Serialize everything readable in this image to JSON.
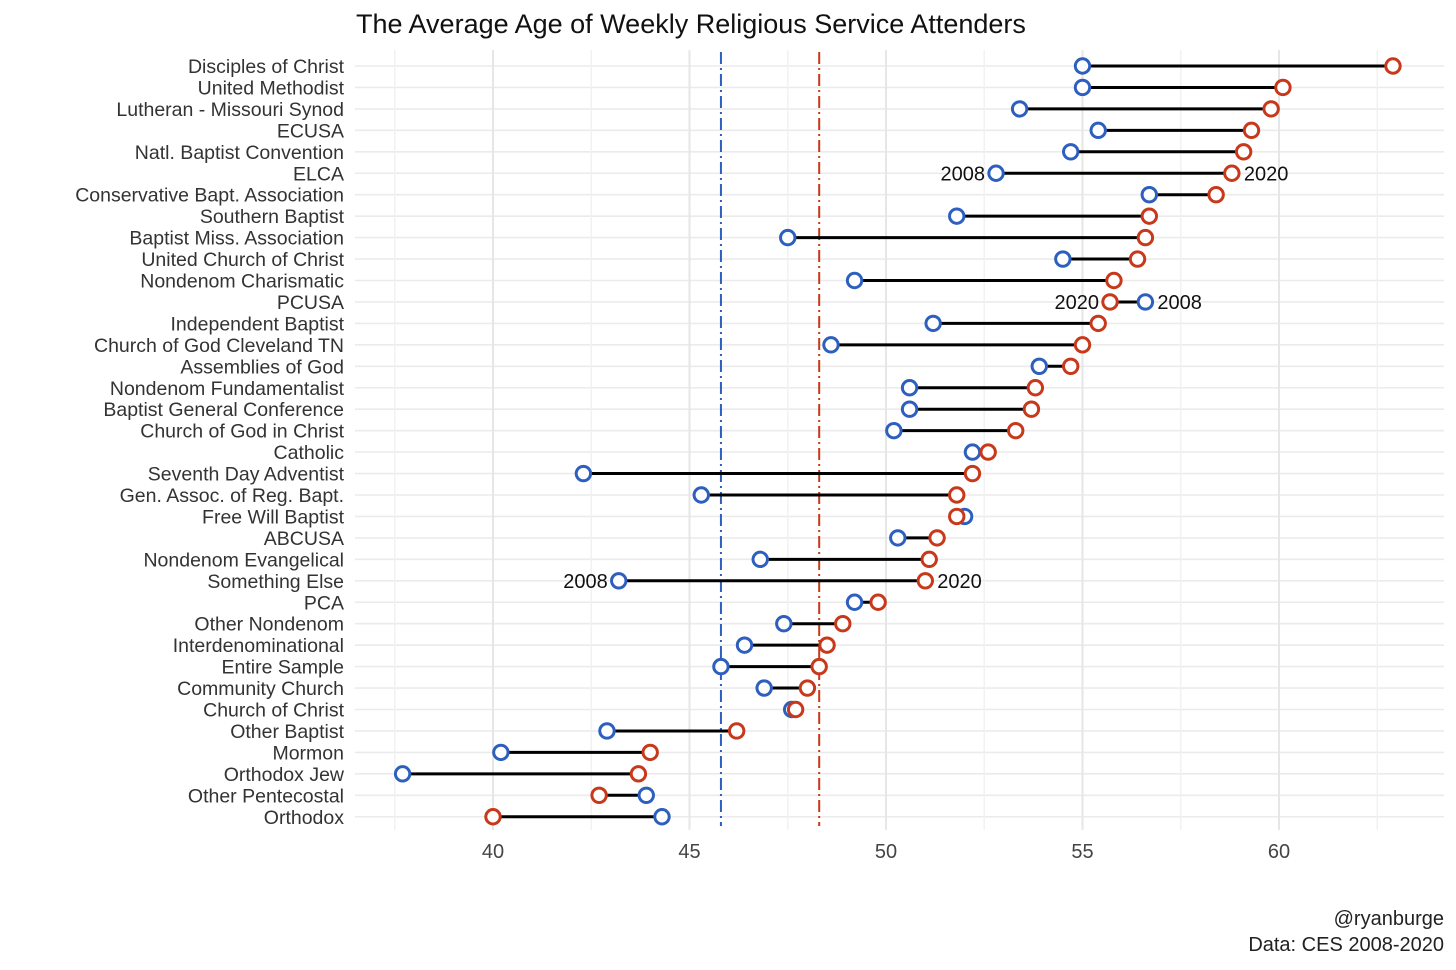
{
  "chart_data": {
    "type": "dumbbell",
    "title": "The Average Age of Weekly Religious Service Attenders",
    "xlabel": "",
    "ylabel": "",
    "xlim": [
      37.4,
      64.2
    ],
    "xticks": [
      40,
      45,
      50,
      55,
      60
    ],
    "grid": true,
    "series": [
      {
        "name": "2008",
        "color": "#2d5fbf"
      },
      {
        "name": "2020",
        "color": "#c8381a"
      }
    ],
    "reference_lines": [
      {
        "value": 45.8,
        "color": "#2d5fbf",
        "style": "dash-dot"
      },
      {
        "value": 48.3,
        "color": "#c8381a",
        "style": "dash-dot"
      }
    ],
    "categories": [
      "Disciples of Christ",
      "United Methodist",
      "Lutheran - Missouri Synod",
      "ECUSA",
      "Natl. Baptist Convention",
      "ELCA",
      "Conservative Bapt. Association",
      "Southern Baptist",
      "Baptist Miss. Association",
      "United Church of Christ",
      "Nondenom Charismatic",
      "PCUSA",
      "Independent Baptist",
      "Church of God Cleveland TN",
      "Assemblies of God",
      "Nondenom Fundamentalist",
      "Baptist General Conference",
      "Church of God in Christ",
      "Catholic",
      "Seventh Day Adventist",
      "Gen. Assoc. of Reg. Bapt.",
      "Free Will Baptist",
      "ABCUSA",
      "Nondenom Evangelical",
      "Something Else",
      "PCA",
      "Other Nondenom",
      "Interdenominational",
      "Entire Sample",
      "Community Church",
      "Church of Christ",
      "Other Baptist",
      "Mormon",
      "Orthodox Jew",
      "Other Pentecostal",
      "Orthodox"
    ],
    "values_2008": [
      55.0,
      55.0,
      53.4,
      55.4,
      54.7,
      52.8,
      56.7,
      51.8,
      47.5,
      54.5,
      49.2,
      56.6,
      51.2,
      48.6,
      53.9,
      50.6,
      50.6,
      50.2,
      52.2,
      42.3,
      45.3,
      52.0,
      50.3,
      46.8,
      43.2,
      49.2,
      47.4,
      46.4,
      45.8,
      46.9,
      47.6,
      42.9,
      40.2,
      37.7,
      43.9,
      44.3
    ],
    "values_2020": [
      62.9,
      60.1,
      59.8,
      59.3,
      59.1,
      58.8,
      58.4,
      56.7,
      56.6,
      56.4,
      55.8,
      55.7,
      55.4,
      55.0,
      54.7,
      53.8,
      53.7,
      53.3,
      52.6,
      52.2,
      51.8,
      51.8,
      51.3,
      51.1,
      51.0,
      49.8,
      48.9,
      48.5,
      48.3,
      48.0,
      47.7,
      46.2,
      44.0,
      43.7,
      42.7,
      40.0
    ],
    "annotations": [
      {
        "category": "ELCA",
        "side": "left",
        "text": "2008"
      },
      {
        "category": "ELCA",
        "side": "right",
        "text": "2020"
      },
      {
        "category": "PCUSA",
        "side": "left",
        "text": "2020"
      },
      {
        "category": "PCUSA",
        "side": "right",
        "text": "2008"
      },
      {
        "category": "Something Else",
        "side": "left",
        "text": "2008"
      },
      {
        "category": "Something Else",
        "side": "right",
        "text": "2020"
      }
    ],
    "caption": [
      "@ryanburge",
      "Data: CES 2008-2020"
    ]
  }
}
